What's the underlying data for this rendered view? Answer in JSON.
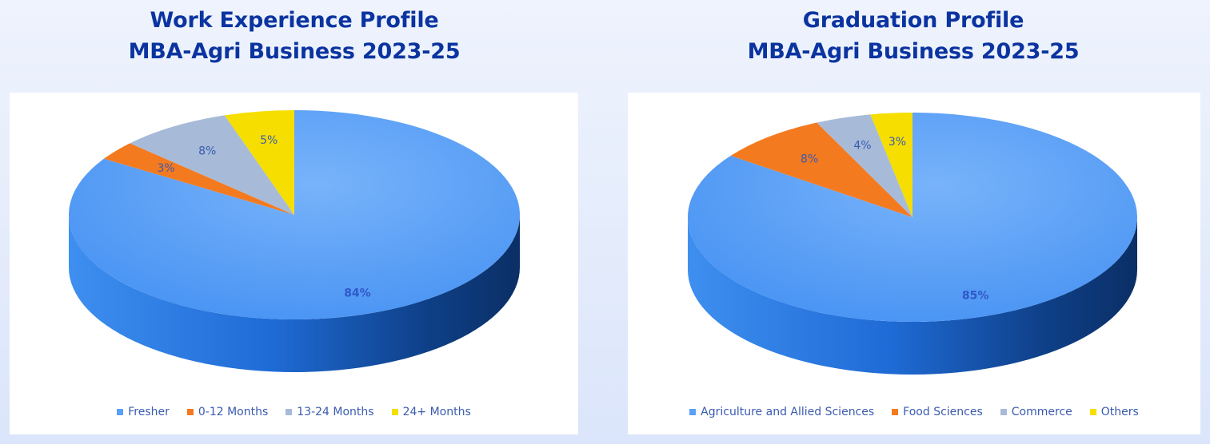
{
  "colors": {
    "title": "#0b34a0",
    "main_top": "#66a6f8",
    "orange": "#f47a20",
    "gray": "#9fb6d6",
    "yellow": "#f5de00"
  },
  "chart_data": [
    {
      "type": "pie",
      "title": "Work Experience Profile",
      "subtitle": "MBA-Agri Business 2023-25",
      "categories": [
        "Fresher",
        "0-12 Months",
        "13-24 Months",
        "24+ Months"
      ],
      "values": [
        84,
        3,
        8,
        5
      ],
      "labels": [
        "84%",
        "3%",
        "8%",
        "5%"
      ],
      "series_colors": [
        "#5aa0f7",
        "#f47a20",
        "#a7bbd8",
        "#f5de00"
      ],
      "legend_position": "bottom"
    },
    {
      "type": "pie",
      "title": "Graduation Profile",
      "subtitle": "MBA-Agri Business 2023-25",
      "categories": [
        "Agriculture and Allied Sciences",
        "Food Sciences",
        "Commerce",
        "Others"
      ],
      "values": [
        85,
        8,
        4,
        3
      ],
      "labels": [
        "85%",
        "8%",
        "4%",
        "3%"
      ],
      "series_colors": [
        "#5aa0f7",
        "#f47a20",
        "#a7bbd8",
        "#f5de00"
      ],
      "legend_position": "bottom"
    }
  ]
}
